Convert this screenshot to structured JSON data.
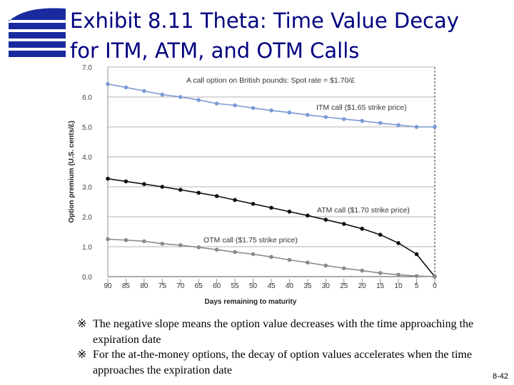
{
  "slide": {
    "title_line1": "Exhibit 8.11  Theta: Time Value Decay",
    "title_line2": "for ITM, ATM, and OTM Calls",
    "page_number": "8-42",
    "notes": [
      {
        "mark": "※",
        "text": "The negative slope means the option value decreases with the time approaching the expiration date"
      },
      {
        "mark": "※",
        "text": "For the at-the-money options, the decay of option values accelerates when the time approaches the expiration date"
      }
    ],
    "colors": {
      "title": "#000080",
      "logo": "#1a2a9e"
    }
  },
  "chart_data": {
    "type": "line",
    "title": "A call option on British pounds: Spot rate = $1.70/£",
    "xlabel": "Days remaining to maturity",
    "ylabel": "Option premium (U.S. cents/£)",
    "x": [
      90,
      85,
      80,
      75,
      70,
      65,
      60,
      55,
      50,
      45,
      40,
      35,
      30,
      25,
      20,
      15,
      10,
      5,
      0
    ],
    "xlim": [
      90,
      0
    ],
    "ylim": [
      0,
      7
    ],
    "yticks": [
      "0.0",
      "1.0",
      "2.0",
      "3.0",
      "4.0",
      "5.0",
      "6.0",
      "7.0"
    ],
    "xticks": [
      "90",
      "85",
      "80",
      "75",
      "70",
      "65",
      "60",
      "55",
      "50",
      "45",
      "40",
      "35",
      "30",
      "25",
      "20",
      "15",
      "10",
      "5",
      "0"
    ],
    "grid": true,
    "series": [
      {
        "name": "ITM call ($1.65 strike price)",
        "color": "#7a9ad4",
        "values": [
          6.43,
          6.32,
          6.2,
          6.08,
          6.0,
          5.9,
          5.78,
          5.72,
          5.63,
          5.55,
          5.48,
          5.4,
          5.33,
          5.26,
          5.2,
          5.13,
          5.06,
          5.0,
          5.0
        ]
      },
      {
        "name": "ATM call ($1.70 strike price)",
        "color": "#111111",
        "values": [
          3.27,
          3.18,
          3.09,
          3.0,
          2.9,
          2.8,
          2.69,
          2.56,
          2.43,
          2.3,
          2.17,
          2.04,
          1.9,
          1.76,
          1.6,
          1.4,
          1.12,
          0.75,
          0.0
        ]
      },
      {
        "name": "OTM call ($1.75 strike price)",
        "color": "#8a8a8a",
        "values": [
          1.25,
          1.22,
          1.18,
          1.1,
          1.05,
          0.98,
          0.9,
          0.82,
          0.75,
          0.66,
          0.56,
          0.47,
          0.37,
          0.28,
          0.2,
          0.12,
          0.06,
          0.02,
          0.0
        ]
      }
    ]
  }
}
